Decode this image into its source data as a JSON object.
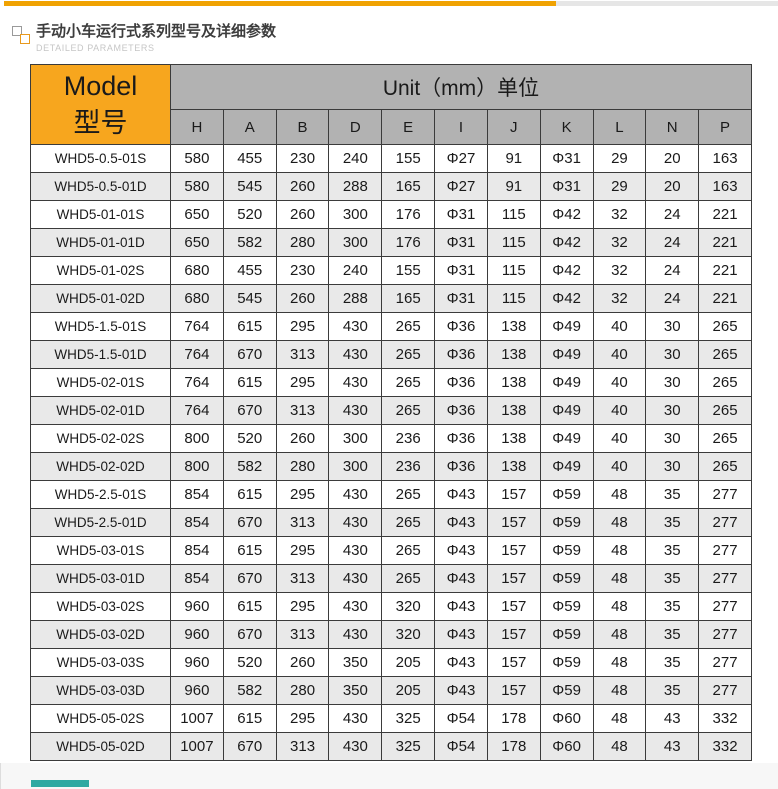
{
  "header": {
    "title": "手动小车运行式系列型号及详细参数",
    "subtitle": "DETAILED PARAMETERS"
  },
  "table": {
    "model_header_en": "Model",
    "model_header_cn": "型号",
    "unit_header": "Unit（mm）单位",
    "columns": [
      "H",
      "A",
      "B",
      "D",
      "E",
      "I",
      "J",
      "K",
      "L",
      "N",
      "P"
    ],
    "rows": [
      {
        "model": "WHD5-0.5-01S",
        "values": [
          "580",
          "455",
          "230",
          "240",
          "155",
          "Φ27",
          "91",
          "Φ31",
          "29",
          "20",
          "163"
        ]
      },
      {
        "model": "WHD5-0.5-01D",
        "values": [
          "580",
          "545",
          "260",
          "288",
          "165",
          "Φ27",
          "91",
          "Φ31",
          "29",
          "20",
          "163"
        ]
      },
      {
        "model": "WHD5-01-01S",
        "values": [
          "650",
          "520",
          "260",
          "300",
          "176",
          "Φ31",
          "115",
          "Φ42",
          "32",
          "24",
          "221"
        ]
      },
      {
        "model": "WHD5-01-01D",
        "values": [
          "650",
          "582",
          "280",
          "300",
          "176",
          "Φ31",
          "115",
          "Φ42",
          "32",
          "24",
          "221"
        ]
      },
      {
        "model": "WHD5-01-02S",
        "values": [
          "680",
          "455",
          "230",
          "240",
          "155",
          "Φ31",
          "115",
          "Φ42",
          "32",
          "24",
          "221"
        ]
      },
      {
        "model": "WHD5-01-02D",
        "values": [
          "680",
          "545",
          "260",
          "288",
          "165",
          "Φ31",
          "115",
          "Φ42",
          "32",
          "24",
          "221"
        ]
      },
      {
        "model": "WHD5-1.5-01S",
        "values": [
          "764",
          "615",
          "295",
          "430",
          "265",
          "Φ36",
          "138",
          "Φ49",
          "40",
          "30",
          "265"
        ]
      },
      {
        "model": "WHD5-1.5-01D",
        "values": [
          "764",
          "670",
          "313",
          "430",
          "265",
          "Φ36",
          "138",
          "Φ49",
          "40",
          "30",
          "265"
        ]
      },
      {
        "model": "WHD5-02-01S",
        "values": [
          "764",
          "615",
          "295",
          "430",
          "265",
          "Φ36",
          "138",
          "Φ49",
          "40",
          "30",
          "265"
        ]
      },
      {
        "model": "WHD5-02-01D",
        "values": [
          "764",
          "670",
          "313",
          "430",
          "265",
          "Φ36",
          "138",
          "Φ49",
          "40",
          "30",
          "265"
        ]
      },
      {
        "model": "WHD5-02-02S",
        "values": [
          "800",
          "520",
          "260",
          "300",
          "236",
          "Φ36",
          "138",
          "Φ49",
          "40",
          "30",
          "265"
        ]
      },
      {
        "model": "WHD5-02-02D",
        "values": [
          "800",
          "582",
          "280",
          "300",
          "236",
          "Φ36",
          "138",
          "Φ49",
          "40",
          "30",
          "265"
        ]
      },
      {
        "model": "WHD5-2.5-01S",
        "values": [
          "854",
          "615",
          "295",
          "430",
          "265",
          "Φ43",
          "157",
          "Φ59",
          "48",
          "35",
          "277"
        ]
      },
      {
        "model": "WHD5-2.5-01D",
        "values": [
          "854",
          "670",
          "313",
          "430",
          "265",
          "Φ43",
          "157",
          "Φ59",
          "48",
          "35",
          "277"
        ]
      },
      {
        "model": "WHD5-03-01S",
        "values": [
          "854",
          "615",
          "295",
          "430",
          "265",
          "Φ43",
          "157",
          "Φ59",
          "48",
          "35",
          "277"
        ]
      },
      {
        "model": "WHD5-03-01D",
        "values": [
          "854",
          "670",
          "313",
          "430",
          "265",
          "Φ43",
          "157",
          "Φ59",
          "48",
          "35",
          "277"
        ]
      },
      {
        "model": "WHD5-03-02S",
        "values": [
          "960",
          "615",
          "295",
          "430",
          "320",
          "Φ43",
          "157",
          "Φ59",
          "48",
          "35",
          "277"
        ]
      },
      {
        "model": "WHD5-03-02D",
        "values": [
          "960",
          "670",
          "313",
          "430",
          "320",
          "Φ43",
          "157",
          "Φ59",
          "48",
          "35",
          "277"
        ]
      },
      {
        "model": "WHD5-03-03S",
        "values": [
          "960",
          "520",
          "260",
          "350",
          "205",
          "Φ43",
          "157",
          "Φ59",
          "48",
          "35",
          "277"
        ]
      },
      {
        "model": "WHD5-03-03D",
        "values": [
          "960",
          "582",
          "280",
          "350",
          "205",
          "Φ43",
          "157",
          "Φ59",
          "48",
          "35",
          "277"
        ]
      },
      {
        "model": "WHD5-05-02S",
        "values": [
          "1007",
          "615",
          "295",
          "430",
          "325",
          "Φ54",
          "178",
          "Φ60",
          "48",
          "43",
          "332"
        ]
      },
      {
        "model": "WHD5-05-02D",
        "values": [
          "1007",
          "670",
          "313",
          "430",
          "325",
          "Φ54",
          "178",
          "Φ60",
          "48",
          "43",
          "332"
        ]
      }
    ]
  },
  "colors": {
    "accent_orange_bar": "#f0a202",
    "model_cell_orange": "#f7a61e",
    "header_gray": "#b2b2b2",
    "row_stripe": "#e9e9e9",
    "table_border": "#3b3b3b",
    "bottom_teal": "#2fa9a2"
  }
}
